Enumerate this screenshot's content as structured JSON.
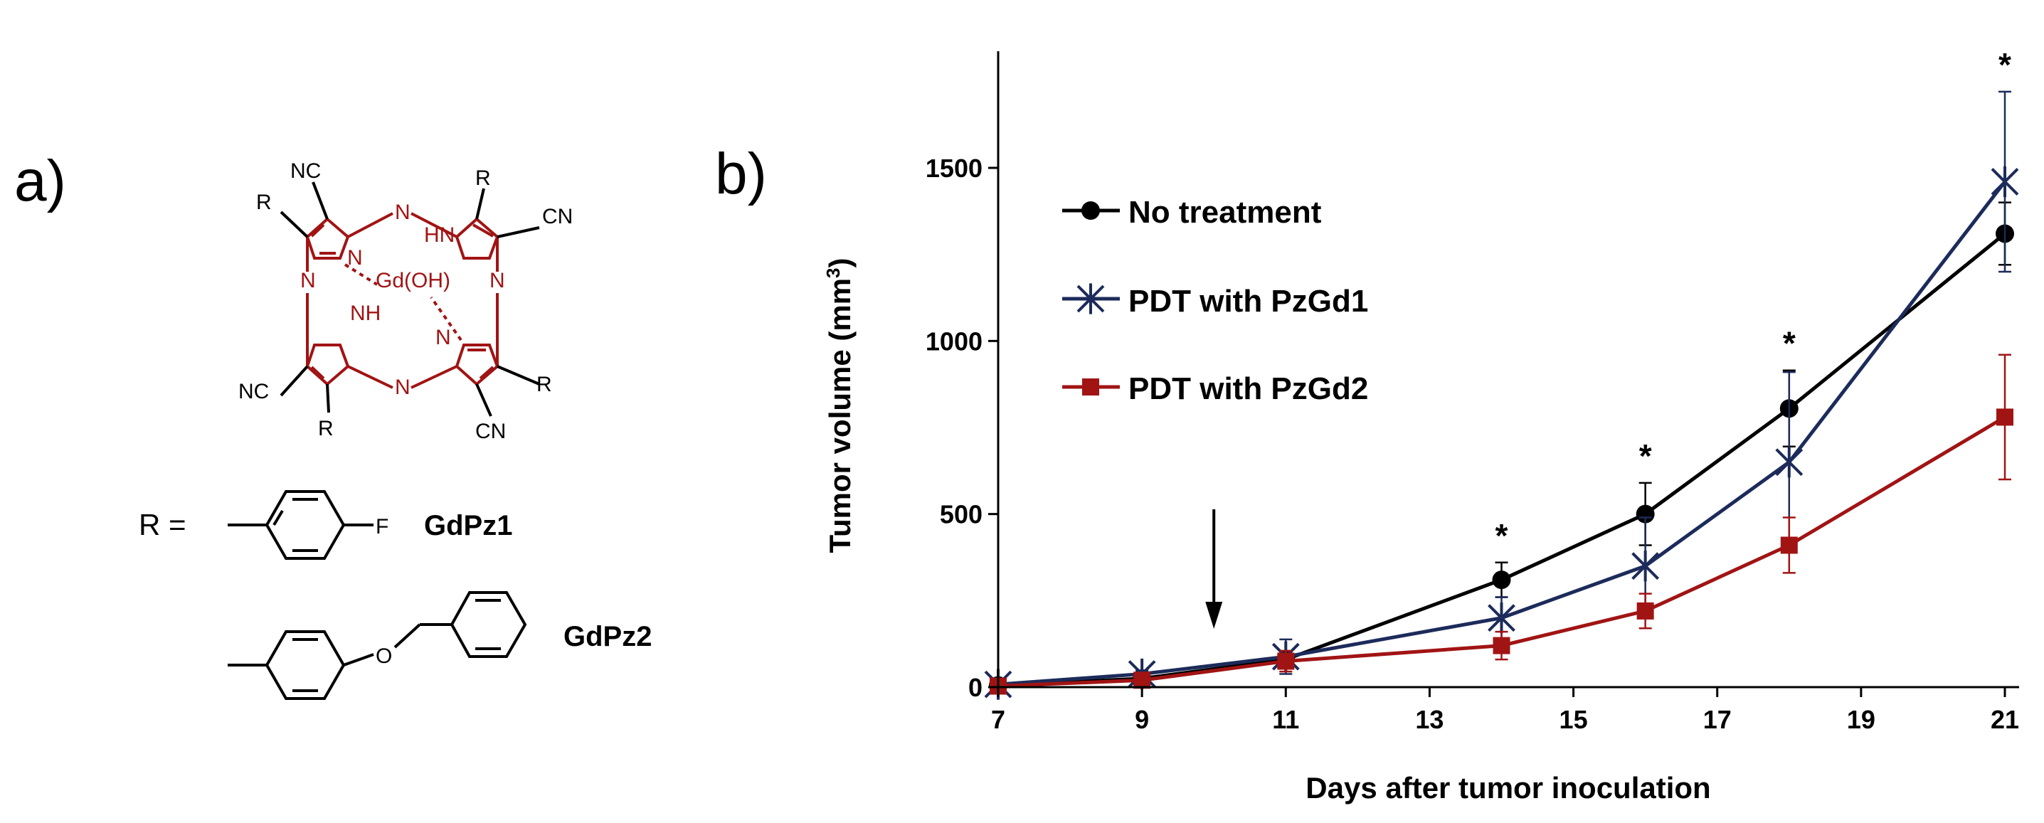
{
  "panel_a": {
    "label": "a)",
    "metal": "Gd(OH)",
    "ring_atoms": [
      "N",
      "N",
      "N",
      "N",
      "N",
      "N",
      "HN",
      "NH"
    ],
    "substituents": [
      "NC",
      "R",
      "R",
      "CN",
      "R",
      "CN",
      "NC",
      "R"
    ],
    "r_prefix": "R =",
    "r1_atom": "F",
    "r2_atom": "O",
    "compound1": "GdPz1",
    "compound2": "GdPz2",
    "colors": {
      "macrocycle": "#a11414",
      "substituent": "#000000"
    }
  },
  "chart_data": {
    "type": "line",
    "panel_label": "b)",
    "title": "",
    "xlabel": "Days after tumor inoculation",
    "ylabel_main": "Tumor volume (mm",
    "ylabel_sup": "3",
    "ylabel_close": ")",
    "xlim": [
      7,
      21
    ],
    "ylim": [
      0,
      1800
    ],
    "xticks": [
      7,
      9,
      11,
      13,
      15,
      17,
      19,
      21
    ],
    "yticks": [
      0,
      500,
      1000,
      1500
    ],
    "treatment_arrow_day": 10,
    "significance_days": [
      14,
      16,
      18,
      21
    ],
    "significance_label": "*",
    "series": [
      {
        "name": "No treatment",
        "marker": "circle",
        "color": "#000000",
        "x": [
          7,
          9,
          11,
          14,
          16,
          18,
          21
        ],
        "y": [
          5,
          25,
          80,
          310,
          500,
          805,
          1310
        ],
        "err": [
          5,
          10,
          20,
          50,
          90,
          110,
          90
        ]
      },
      {
        "name": "PDT with PzGd1",
        "marker": "star",
        "color": "#1c2b5a",
        "x": [
          7,
          9,
          11,
          14,
          16,
          18,
          21
        ],
        "y": [
          8,
          38,
          88,
          200,
          350,
          650,
          1460
        ],
        "err": [
          5,
          10,
          50,
          60,
          140,
          260,
          260
        ]
      },
      {
        "name": "PDT with PzGd2",
        "marker": "square",
        "color": "#a11414",
        "x": [
          7,
          9,
          11,
          14,
          16,
          18,
          21
        ],
        "y": [
          3,
          20,
          75,
          120,
          220,
          410,
          780
        ],
        "err": [
          5,
          10,
          30,
          40,
          50,
          80,
          180
        ]
      }
    ]
  }
}
